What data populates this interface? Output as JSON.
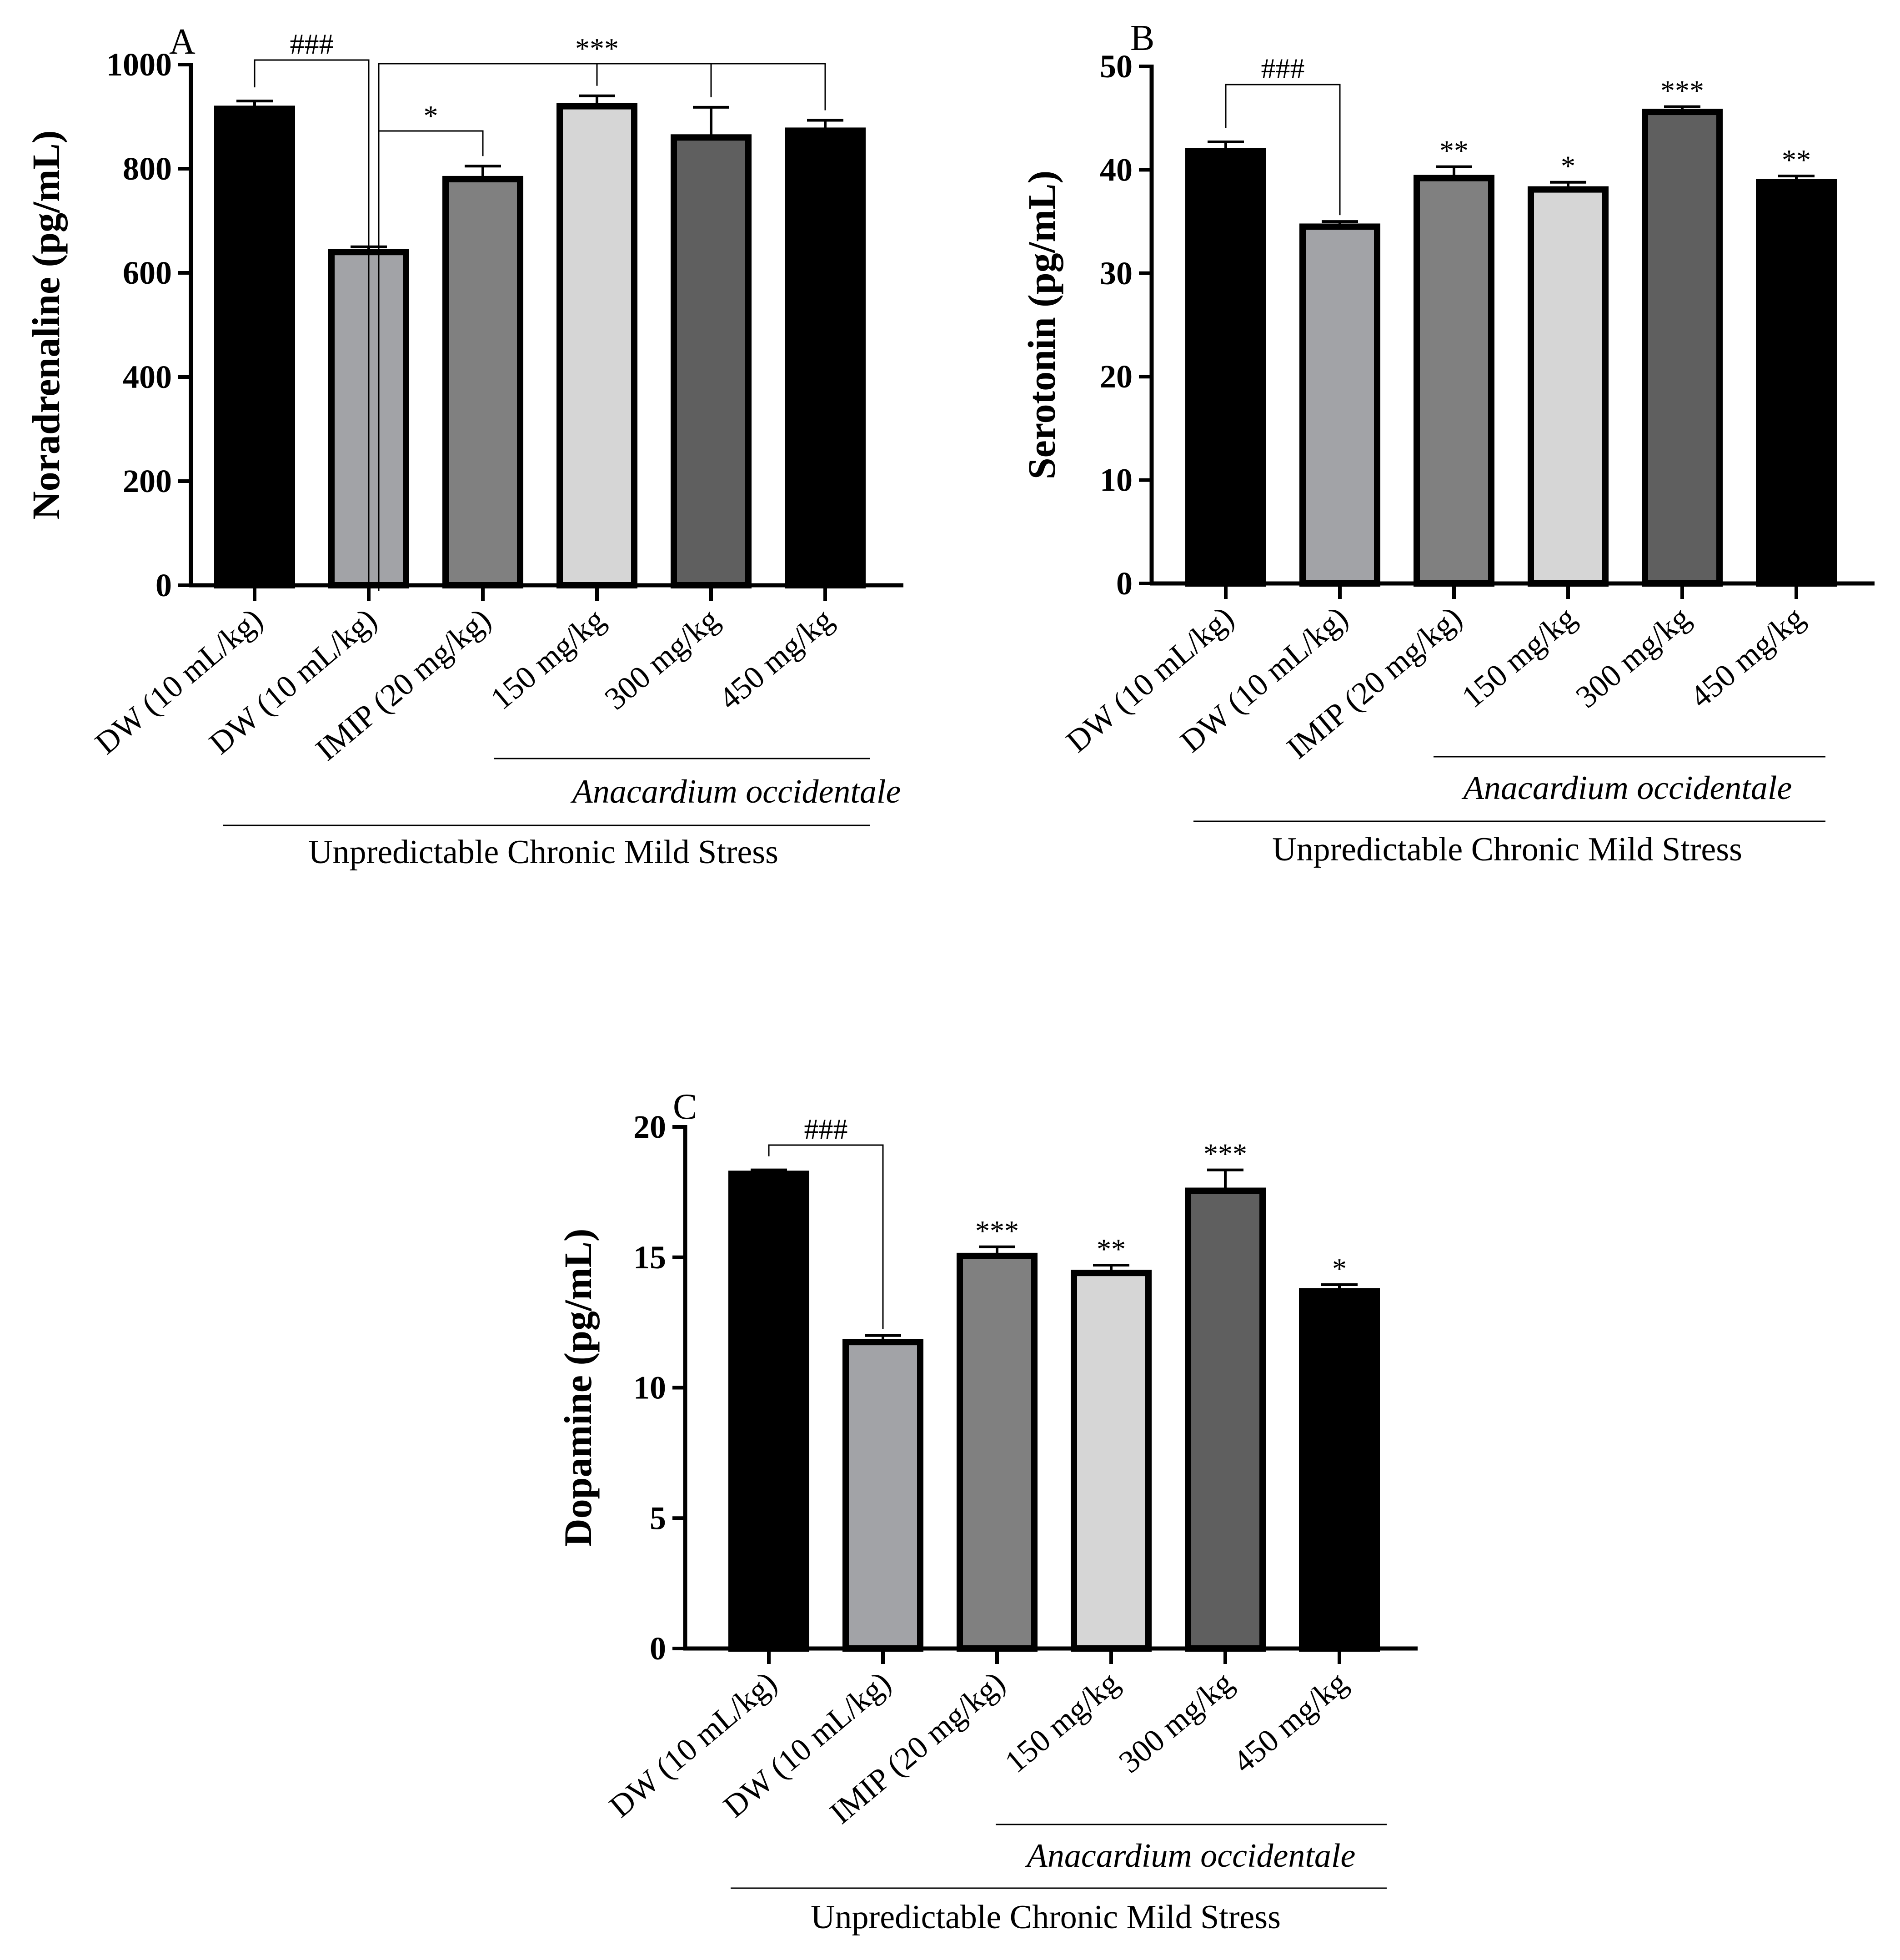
{
  "chart_data": [
    {
      "type": "bar",
      "panel": "A",
      "ylabel": "Noradrenaline (pg/mL)",
      "ylim": [
        0,
        1000
      ],
      "yticks": [
        0,
        200,
        400,
        600,
        800,
        1000
      ],
      "categories": [
        "DW (10 mL/kg)",
        "DW (10 mL/kg)",
        "IMIP (20 mg/kg)",
        "150 mg/kg",
        "300 mg/kg",
        "450 mg/kg"
      ],
      "values": [
        915,
        640,
        780,
        920,
        860,
        873
      ],
      "errors": [
        15,
        10,
        25,
        20,
        58,
        20
      ],
      "fills": [
        "#000000",
        "#a2a3a7",
        "#808080",
        "#d6d6d6",
        "#5f5f5f",
        "#000000"
      ],
      "significance": [
        {
          "from": 0,
          "to": 1,
          "label": "###"
        },
        {
          "from": 1,
          "to": 2,
          "label": "*"
        },
        {
          "from": 1,
          "to": [
            3,
            4,
            5
          ],
          "label": "***"
        }
      ],
      "bar_marks": [
        "",
        "",
        "",
        "",
        "",
        ""
      ],
      "group_sub": "Anacardium occidentale",
      "group_main": "Unpredictable Chronic Mild Stress"
    },
    {
      "type": "bar",
      "panel": "B",
      "ylabel": "Serotonin (pg/mL)",
      "ylim": [
        0,
        50
      ],
      "yticks": [
        0,
        10,
        20,
        30,
        40,
        50
      ],
      "categories": [
        "DW (10 mL/kg)",
        "DW (10 mL/kg)",
        "IMIP (20 mg/kg)",
        "150 mg/kg",
        "300 mg/kg",
        "450 mg/kg"
      ],
      "values": [
        41.8,
        34.5,
        39.2,
        38.1,
        45.6,
        38.8
      ],
      "errors": [
        0.9,
        0.5,
        1.1,
        0.7,
        0.5,
        0.6
      ],
      "fills": [
        "#000000",
        "#a2a3a7",
        "#808080",
        "#d6d6d6",
        "#5f5f5f",
        "#000000"
      ],
      "significance": [
        {
          "from": 0,
          "to": 1,
          "label": "###"
        }
      ],
      "bar_marks": [
        "",
        "",
        "**",
        "*",
        "***",
        "**"
      ],
      "group_sub": "Anacardium occidentale",
      "group_main": "Unpredictable Chronic Mild Stress"
    },
    {
      "type": "bar",
      "panel": "C",
      "ylabel": "Dopamine (pg/mL)",
      "ylim": [
        0,
        20
      ],
      "yticks": [
        0,
        5,
        10,
        15,
        20
      ],
      "categories": [
        "DW (10 mL/kg)",
        "DW (10 mL/kg)",
        "IMIP (20 mg/kg)",
        "150 mg/kg",
        "300 mg/kg",
        "450 mg/kg"
      ],
      "values": [
        18.2,
        11.75,
        15.05,
        14.4,
        17.55,
        13.7
      ],
      "errors": [
        0.15,
        0.25,
        0.35,
        0.3,
        0.8,
        0.25
      ],
      "fills": [
        "#000000",
        "#a2a3a7",
        "#808080",
        "#d6d6d6",
        "#5f5f5f",
        "#000000"
      ],
      "significance": [
        {
          "from": 0,
          "to": 1,
          "label": "###"
        }
      ],
      "bar_marks": [
        "",
        "",
        "***",
        "**",
        "***",
        "*"
      ],
      "group_sub": "Anacardium occidentale",
      "group_main": "Unpredictable Chronic Mild Stress"
    }
  ]
}
